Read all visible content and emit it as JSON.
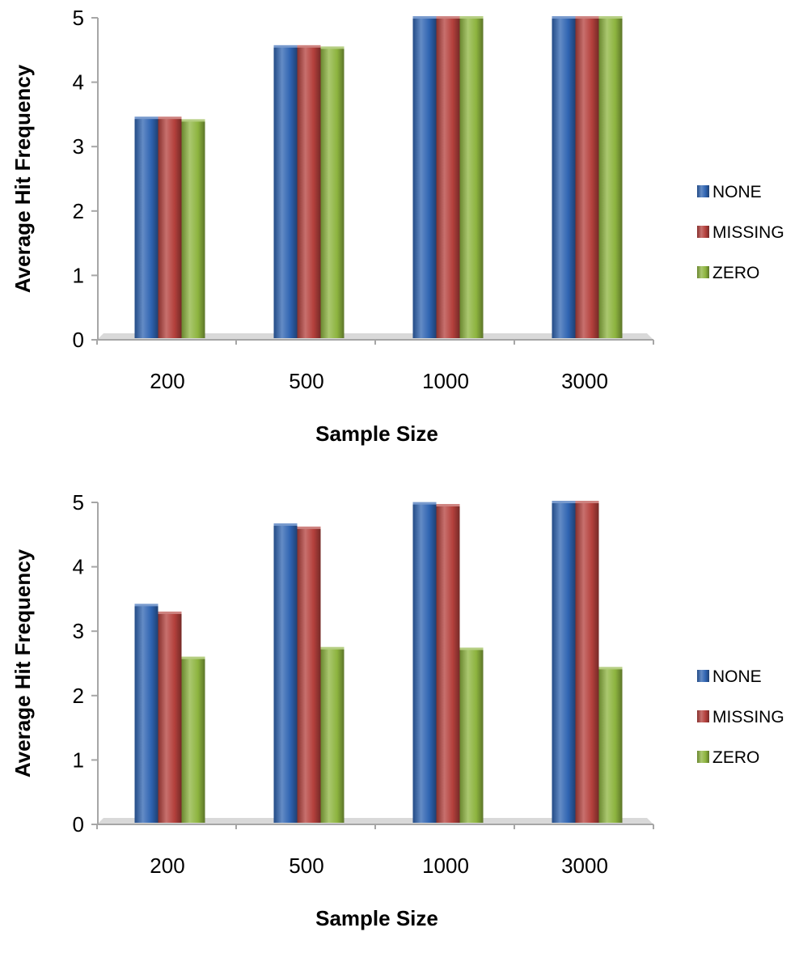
{
  "colors": {
    "NONE": "#2f64b2",
    "MISSING": "#b4403c",
    "ZERO": "#8db43f",
    "axis": "#a6a6a6"
  },
  "chart_data": [
    {
      "type": "bar",
      "categories": [
        "200",
        "500",
        "1000",
        "3000"
      ],
      "series": [
        {
          "name": "NONE",
          "values": [
            3.44,
            4.55,
            5.0,
            5.0
          ]
        },
        {
          "name": "MISSING",
          "values": [
            3.44,
            4.55,
            5.0,
            5.0
          ]
        },
        {
          "name": "ZERO",
          "values": [
            3.4,
            4.53,
            5.0,
            5.0
          ]
        }
      ],
      "xlabel": "Sample Size",
      "ylabel": "Average Hit Frequency",
      "ylim": [
        0,
        5
      ],
      "yticks": [
        "0",
        "1",
        "2",
        "3",
        "4",
        "5"
      ],
      "grid": false,
      "legend": "right"
    },
    {
      "type": "bar",
      "categories": [
        "200",
        "500",
        "1000",
        "3000"
      ],
      "series": [
        {
          "name": "NONE",
          "values": [
            3.4,
            4.65,
            4.98,
            5.0
          ]
        },
        {
          "name": "MISSING",
          "values": [
            3.28,
            4.6,
            4.95,
            5.0
          ]
        },
        {
          "name": "ZERO",
          "values": [
            2.58,
            2.73,
            2.72,
            2.42
          ]
        }
      ],
      "xlabel": "Sample Size",
      "ylabel": "Average Hit Frequency",
      "ylim": [
        0,
        5
      ],
      "yticks": [
        "0",
        "1",
        "2",
        "3",
        "4",
        "5"
      ],
      "grid": false,
      "legend": "right"
    }
  ]
}
